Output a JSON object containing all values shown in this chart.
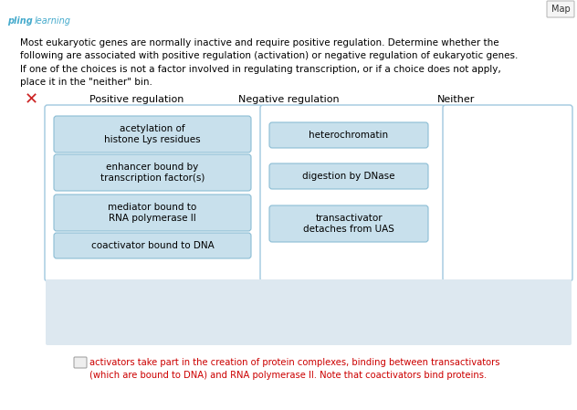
{
  "title_text": "Most eukaryotic genes are normally inactive and require positive regulation. Determine whether the\nfollowing are associated with positive regulation (activation) or negative regulation of eukaryotic genes.\nIf one of the choices is not a factor involved in regulating transcription, or if a choice does not apply,\nplace it in the \"neither\" bin.",
  "col_headers": [
    "Positive regulation",
    "Negative regulation",
    "Neither"
  ],
  "positive_items": [
    "acetylation of\nhistone Lys residues",
    "enhancer bound by\ntranscription factor(s)",
    "mediator bound to\nRNA polymerase II",
    "coactivator bound to DNA"
  ],
  "negative_items": [
    "heterochromatin",
    "digestion by DNase",
    "transactivator\ndetaches from UAS"
  ],
  "item_bg": "#c8e0ec",
  "item_border": "#8bbdd4",
  "box_border": "#a0c8de",
  "box_bg": "#ffffff",
  "header_color": "#000000",
  "text_color": "#000000",
  "footer_text": "activators take part in the creation of protein complexes, binding between transactivators\n(which are bound to DNA) and RNA polymerase II. Note that coactivators bind proteins.",
  "footer_color": "#cc0000",
  "map_btn": "Map",
  "bg_color": "#ffffff",
  "bottom_panel_color": "#dde8f0",
  "logo_color_pling": "#44aacc",
  "logo_color_learning": "#44aacc"
}
